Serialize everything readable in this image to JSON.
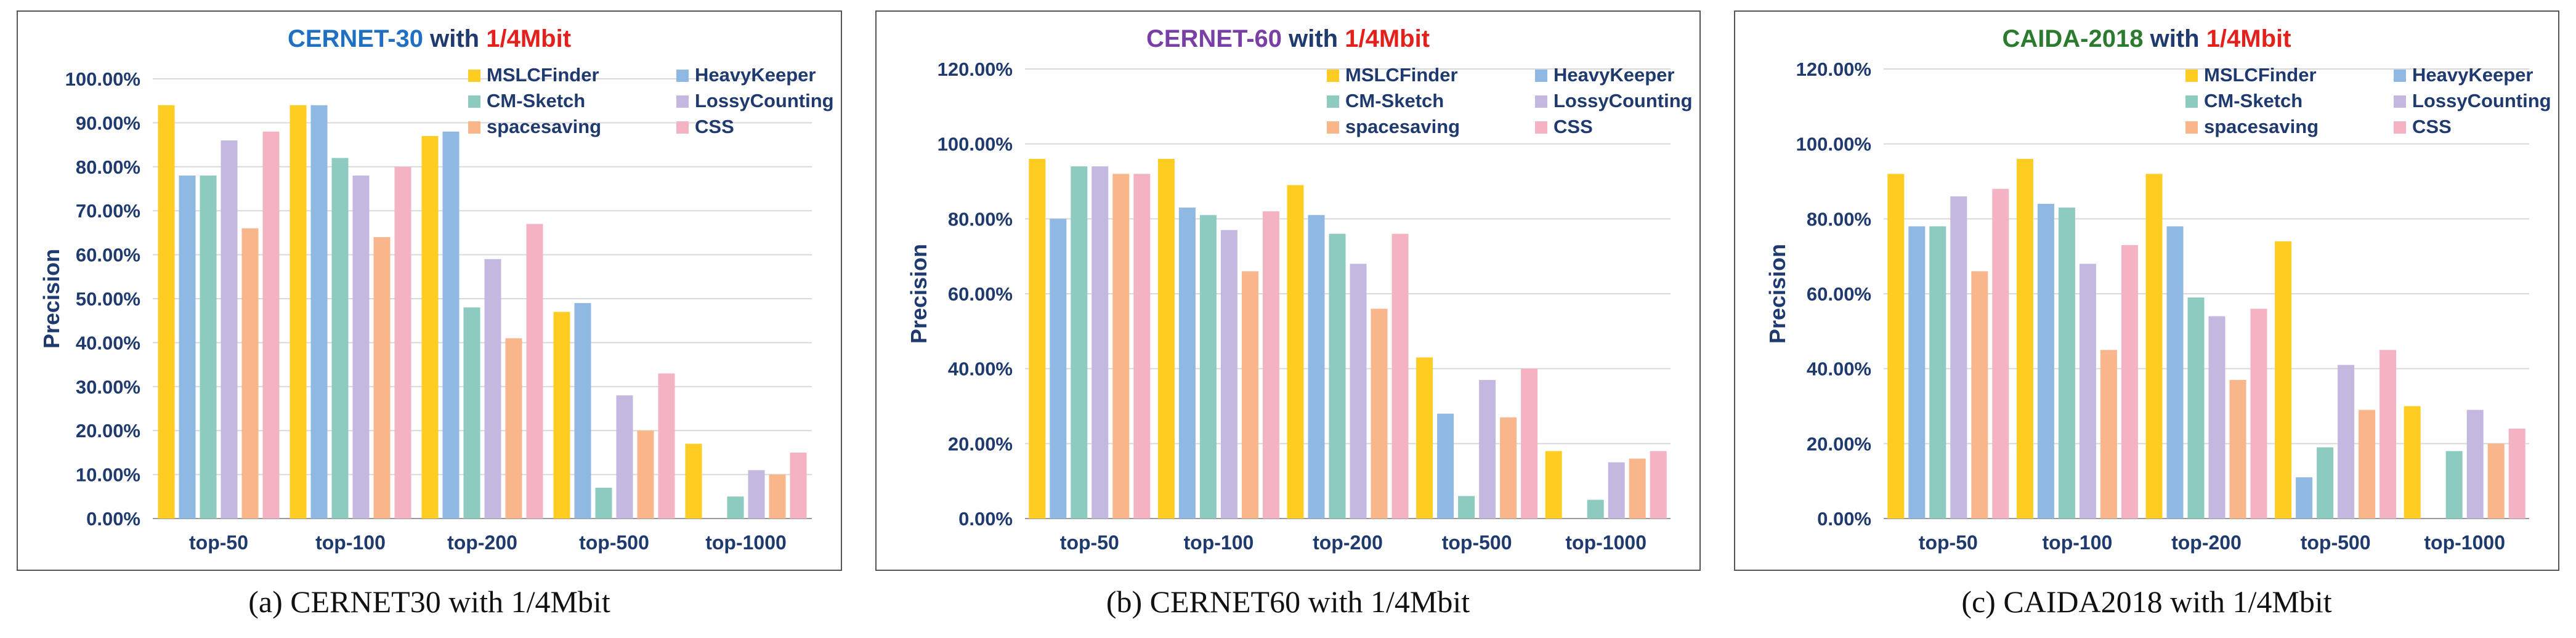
{
  "series_names": [
    "MSLCFinder",
    "HeavyKeeper",
    "CM-Sketch",
    "LossyCounting",
    "spacesaving",
    "CSS"
  ],
  "series_colors": [
    "#FFCC22",
    "#8FB8E2",
    "#8DCABF",
    "#C4B7E0",
    "#F9B68B",
    "#F3B3C2"
  ],
  "chart_data": [
    {
      "type": "bar",
      "title_parts": [
        {
          "text": "CERNET-30",
          "color": "#1F6FC2"
        },
        {
          "text": " with ",
          "color": "#1F3A6E"
        },
        {
          "text": "1/4Mbit",
          "color": "#E3201C"
        }
      ],
      "caption": "(a)  CERNET30 with 1/4Mbit",
      "ylabel": "Precision",
      "ylim": [
        0,
        100
      ],
      "yticks": [
        0,
        10,
        20,
        30,
        40,
        50,
        60,
        70,
        80,
        90,
        100
      ],
      "ytick_labels": [
        "0.00%",
        "10.00%",
        "20.00%",
        "30.00%",
        "40.00%",
        "50.00%",
        "60.00%",
        "70.00%",
        "80.00%",
        "90.00%",
        "100.00%"
      ],
      "categories": [
        "top-50",
        "top-100",
        "top-200",
        "top-500",
        "top-1000"
      ],
      "series": [
        {
          "name": "MSLCFinder",
          "values": [
            94,
            94,
            87,
            47,
            17
          ]
        },
        {
          "name": "HeavyKeeper",
          "values": [
            78,
            94,
            88,
            49,
            0
          ]
        },
        {
          "name": "CM-Sketch",
          "values": [
            78,
            82,
            48,
            7,
            5
          ]
        },
        {
          "name": "LossyCounting",
          "values": [
            86,
            78,
            59,
            28,
            11
          ]
        },
        {
          "name": "spacesaving",
          "values": [
            66,
            64,
            41,
            20,
            10
          ]
        },
        {
          "name": "CSS",
          "values": [
            88,
            80,
            67,
            33,
            15
          ]
        }
      ]
    },
    {
      "type": "bar",
      "title_parts": [
        {
          "text": "CERNET-60",
          "color": "#7A3FA6"
        },
        {
          "text": " with ",
          "color": "#1F3A6E"
        },
        {
          "text": "1/4Mbit",
          "color": "#E3201C"
        }
      ],
      "caption": "(b)  CERNET60 with 1/4Mbit",
      "ylabel": "Precision",
      "ylim": [
        0,
        120
      ],
      "yticks": [
        0,
        20,
        40,
        60,
        80,
        100,
        120
      ],
      "ytick_labels": [
        "0.00%",
        "20.00%",
        "40.00%",
        "60.00%",
        "80.00%",
        "100.00%",
        "120.00%"
      ],
      "categories": [
        "top-50",
        "top-100",
        "top-200",
        "top-500",
        "top-1000"
      ],
      "series": [
        {
          "name": "MSLCFinder",
          "values": [
            96,
            96,
            89,
            43,
            18
          ]
        },
        {
          "name": "HeavyKeeper",
          "values": [
            80,
            83,
            81,
            28,
            0
          ]
        },
        {
          "name": "CM-Sketch",
          "values": [
            94,
            81,
            76,
            6,
            5
          ]
        },
        {
          "name": "LossyCounting",
          "values": [
            94,
            77,
            68,
            37,
            15
          ]
        },
        {
          "name": "spacesaving",
          "values": [
            92,
            66,
            56,
            27,
            16
          ]
        },
        {
          "name": "CSS",
          "values": [
            92,
            82,
            76,
            40,
            18
          ]
        }
      ]
    },
    {
      "type": "bar",
      "title_parts": [
        {
          "text": "CAIDA-2018",
          "color": "#2B7A2E"
        },
        {
          "text": " with ",
          "color": "#1F3A6E"
        },
        {
          "text": "1/4Mbit",
          "color": "#E3201C"
        }
      ],
      "caption": "(c)  CAIDA2018 with 1/4Mbit",
      "ylabel": "Precision",
      "ylim": [
        0,
        120
      ],
      "yticks": [
        0,
        20,
        40,
        60,
        80,
        100,
        120
      ],
      "ytick_labels": [
        "0.00%",
        "20.00%",
        "40.00%",
        "60.00%",
        "80.00%",
        "100.00%",
        "120.00%"
      ],
      "categories": [
        "top-50",
        "top-100",
        "top-200",
        "top-500",
        "top-1000"
      ],
      "series": [
        {
          "name": "MSLCFinder",
          "values": [
            92,
            96,
            92,
            74,
            30
          ]
        },
        {
          "name": "HeavyKeeper",
          "values": [
            78,
            84,
            78,
            11,
            0
          ]
        },
        {
          "name": "CM-Sketch",
          "values": [
            78,
            83,
            59,
            19,
            18
          ]
        },
        {
          "name": "LossyCounting",
          "values": [
            86,
            68,
            54,
            41,
            29
          ]
        },
        {
          "name": "spacesaving",
          "values": [
            66,
            45,
            37,
            29,
            20
          ]
        },
        {
          "name": "CSS",
          "values": [
            88,
            73,
            56,
            45,
            24
          ]
        }
      ]
    }
  ]
}
